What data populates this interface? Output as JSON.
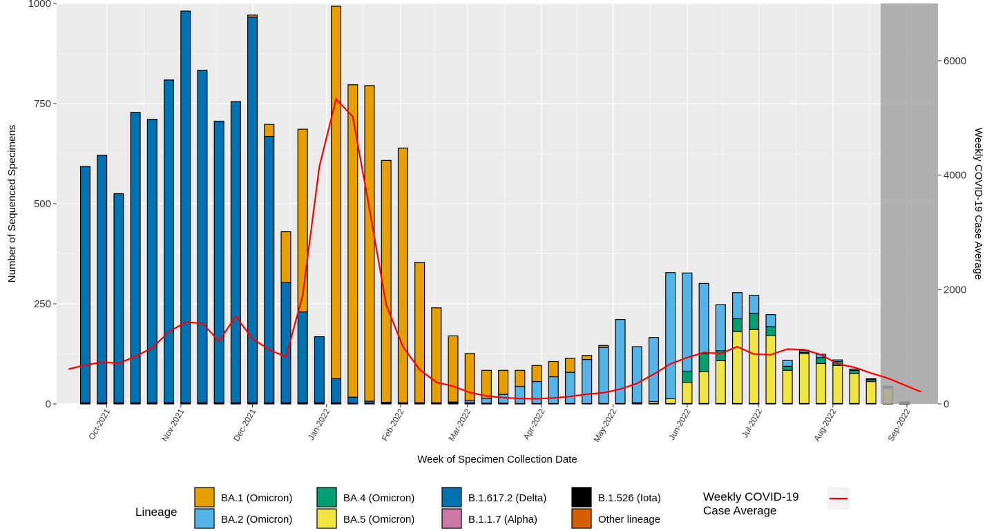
{
  "chart_data": {
    "type": "bar",
    "stacked": true,
    "xlabel": "Week of Specimen Collection Date",
    "ylabel": "Number of Sequenced Specimens",
    "y2label": "Weekly COVID-19 Case Average",
    "ylim": [
      0,
      1000
    ],
    "y2lim": [
      0,
      7000
    ],
    "yticks": [
      "0",
      "250",
      "500",
      "750",
      "1000"
    ],
    "y2ticks": [
      "0",
      "2000",
      "4000",
      "6000"
    ],
    "x_tick_labels": [
      "Oct-2021",
      "Nov-2021",
      "Dec-2021",
      "Jan-2022",
      "Feb-2022",
      "Mar-2022",
      "Apr-2022",
      "May-2022",
      "Jun-2022",
      "Jul-2022",
      "Aug-2022",
      "Sep-2022"
    ],
    "x_tick_dates": [
      "2021-10-01",
      "2021-11-01",
      "2021-12-01",
      "2022-01-01",
      "2022-02-01",
      "2022-03-01",
      "2022-04-01",
      "2022-05-01",
      "2022-06-01",
      "2022-07-01",
      "2022-08-01",
      "2022-09-01"
    ],
    "weeks": [
      "2021-09-22",
      "2021-09-29",
      "2021-10-06",
      "2021-10-13",
      "2021-10-20",
      "2021-10-27",
      "2021-11-03",
      "2021-11-10",
      "2021-11-17",
      "2021-11-24",
      "2021-12-01",
      "2021-12-08",
      "2021-12-15",
      "2021-12-22",
      "2021-12-29",
      "2022-01-05",
      "2022-01-12",
      "2022-01-19",
      "2022-01-26",
      "2022-02-02",
      "2022-02-09",
      "2022-02-16",
      "2022-02-23",
      "2022-03-02",
      "2022-03-09",
      "2022-03-16",
      "2022-03-23",
      "2022-03-30",
      "2022-04-06",
      "2022-04-13",
      "2022-04-20",
      "2022-04-27",
      "2022-05-04",
      "2022-05-11",
      "2022-05-18",
      "2022-05-25",
      "2022-06-01",
      "2022-06-08",
      "2022-06-15",
      "2022-06-22",
      "2022-06-29",
      "2022-07-06",
      "2022-07-13",
      "2022-07-20",
      "2022-07-27",
      "2022-08-03",
      "2022-08-10",
      "2022-08-17",
      "2022-08-24",
      "2022-08-31",
      "2022-09-07"
    ],
    "series": [
      {
        "name": "B.1.526 (Iota)",
        "color": "#000000",
        "values": [
          3,
          3,
          3,
          3,
          3,
          3,
          3,
          3,
          3,
          3,
          3,
          3,
          3,
          3,
          3,
          3,
          2,
          2,
          2,
          2,
          2,
          2,
          2,
          2,
          2,
          2,
          1,
          1,
          1,
          1,
          1,
          1,
          1,
          1,
          1,
          1,
          1,
          1,
          1,
          1,
          1,
          1,
          1,
          1,
          1,
          1,
          1,
          1,
          1,
          1,
          0
        ]
      },
      {
        "name": "B.1.617.2 (Delta)",
        "color": "#0072B2",
        "values": [
          590,
          618,
          522,
          725,
          708,
          806,
          978,
          830,
          703,
          752,
          963,
          665,
          300,
          227,
          165,
          60,
          15,
          5,
          2,
          1,
          1,
          1,
          1,
          1,
          0,
          0,
          0,
          0,
          0,
          0,
          0,
          0,
          0,
          0,
          0,
          0,
          0,
          0,
          0,
          0,
          0,
          0,
          0,
          0,
          0,
          0,
          0,
          0,
          0,
          0,
          0
        ]
      },
      {
        "name": "BA.1 (Omicron)",
        "color": "#E69F00",
        "values": [
          0,
          0,
          0,
          0,
          0,
          0,
          0,
          0,
          0,
          0,
          5,
          30,
          127,
          456,
          0,
          930,
          780,
          788,
          604,
          636,
          350,
          237,
          165,
          118,
          70,
          60,
          40,
          40,
          38,
          35,
          10,
          5,
          0,
          0,
          0,
          0,
          0,
          0,
          0,
          0,
          0,
          0,
          0,
          0,
          0,
          0,
          0,
          0,
          0,
          0,
          0
        ]
      },
      {
        "name": "BA.2 (Omicron)",
        "color": "#56B4E9",
        "values": [
          0,
          0,
          0,
          0,
          0,
          0,
          0,
          0,
          0,
          0,
          0,
          0,
          0,
          0,
          0,
          0,
          0,
          0,
          0,
          0,
          0,
          0,
          2,
          5,
          12,
          22,
          43,
          55,
          67,
          78,
          110,
          140,
          210,
          140,
          160,
          315,
          245,
          175,
          115,
          65,
          45,
          30,
          15,
          5,
          8,
          4,
          3,
          2,
          1,
          1,
          0
        ]
      },
      {
        "name": "BA.4 (Omicron)",
        "color": "#009E73",
        "values": [
          0,
          0,
          0,
          0,
          0,
          0,
          0,
          0,
          0,
          0,
          0,
          0,
          0,
          0,
          0,
          0,
          0,
          0,
          0,
          0,
          0,
          0,
          0,
          0,
          0,
          0,
          0,
          0,
          0,
          0,
          0,
          0,
          0,
          0,
          0,
          0,
          28,
          45,
          25,
          32,
          40,
          22,
          10,
          3,
          15,
          10,
          8,
          5,
          4,
          2,
          0
        ]
      },
      {
        "name": "BA.5 (Omicron)",
        "color": "#F0E442",
        "values": [
          0,
          0,
          0,
          0,
          0,
          0,
          0,
          0,
          0,
          0,
          0,
          0,
          0,
          0,
          0,
          0,
          0,
          0,
          0,
          0,
          0,
          0,
          0,
          0,
          0,
          0,
          0,
          0,
          0,
          0,
          0,
          0,
          0,
          2,
          5,
          12,
          53,
          80,
          107,
          180,
          185,
          170,
          83,
          125,
          100,
          95,
          75,
          55,
          38,
          1,
          0
        ]
      },
      {
        "name": "B.1.1.7 (Alpha)",
        "color": "#CC79A7",
        "values": [
          0,
          0,
          0,
          0,
          0,
          0,
          0,
          0,
          0,
          0,
          0,
          0,
          0,
          0,
          0,
          0,
          0,
          0,
          0,
          0,
          0,
          0,
          0,
          0,
          0,
          0,
          0,
          0,
          0,
          0,
          0,
          0,
          0,
          0,
          0,
          0,
          0,
          0,
          0,
          0,
          0,
          0,
          0,
          0,
          0,
          0,
          0,
          0,
          0,
          0,
          0
        ]
      },
      {
        "name": "Other lineage",
        "color": "#D55E00",
        "values": [
          0,
          0,
          0,
          0,
          0,
          0,
          0,
          0,
          0,
          0,
          0,
          0,
          0,
          0,
          0,
          0,
          0,
          0,
          0,
          0,
          0,
          0,
          0,
          0,
          0,
          0,
          0,
          0,
          0,
          0,
          0,
          0,
          0,
          0,
          0,
          0,
          0,
          0,
          0,
          0,
          0,
          0,
          0,
          0,
          0,
          0,
          0,
          0,
          0,
          0,
          0
        ]
      }
    ],
    "line": {
      "name": "Weekly COVID-19 Case Average",
      "color": "#FF0000",
      "dates": [
        "2021-09-15",
        "2021-09-22",
        "2021-09-29",
        "2021-10-06",
        "2021-10-13",
        "2021-10-20",
        "2021-10-27",
        "2021-11-03",
        "2021-11-10",
        "2021-11-17",
        "2021-11-24",
        "2021-12-01",
        "2021-12-08",
        "2021-12-15",
        "2021-12-22",
        "2021-12-29",
        "2022-01-05",
        "2022-01-12",
        "2022-01-19",
        "2022-01-26",
        "2022-02-02",
        "2022-02-09",
        "2022-02-16",
        "2022-02-23",
        "2022-03-02",
        "2022-03-09",
        "2022-03-16",
        "2022-03-23",
        "2022-03-30",
        "2022-04-06",
        "2022-04-13",
        "2022-04-20",
        "2022-04-27",
        "2022-05-04",
        "2022-05-11",
        "2022-05-18",
        "2022-05-25",
        "2022-06-01",
        "2022-06-08",
        "2022-06-15",
        "2022-06-22",
        "2022-06-29",
        "2022-07-06",
        "2022-07-13",
        "2022-07-20",
        "2022-07-27",
        "2022-08-03",
        "2022-08-10",
        "2022-08-17",
        "2022-08-24",
        "2022-08-31",
        "2022-09-07"
      ],
      "values": [
        610,
        680,
        730,
        710,
        830,
        980,
        1260,
        1430,
        1410,
        1100,
        1530,
        1140,
        950,
        820,
        1900,
        4150,
        5330,
        5020,
        3400,
        1730,
        1000,
        600,
        380,
        310,
        200,
        140,
        110,
        95,
        90,
        105,
        130,
        170,
        195,
        260,
        360,
        520,
        700,
        810,
        900,
        880,
        1000,
        870,
        860,
        960,
        950,
        860,
        700,
        640,
        540,
        450,
        330,
        210
      ]
    },
    "shaded_region": {
      "start": "2022-08-21",
      "end": "2022-09-14",
      "color": "#A6A6A6"
    },
    "legend": {
      "placement": "bottom",
      "title": "Lineage",
      "items": [
        "BA.1 (Omicron)",
        "BA.2 (Omicron)",
        "BA.4 (Omicron)",
        "BA.5 (Omicron)",
        "B.1.617.2 (Delta)",
        "B.1.1.7 (Alpha)",
        "B.1.526 (Iota)",
        "Other lineage"
      ],
      "line_label": "Weekly COVID-19\nCase Average"
    },
    "grid": true,
    "panel_background": "#EBEBEB"
  }
}
